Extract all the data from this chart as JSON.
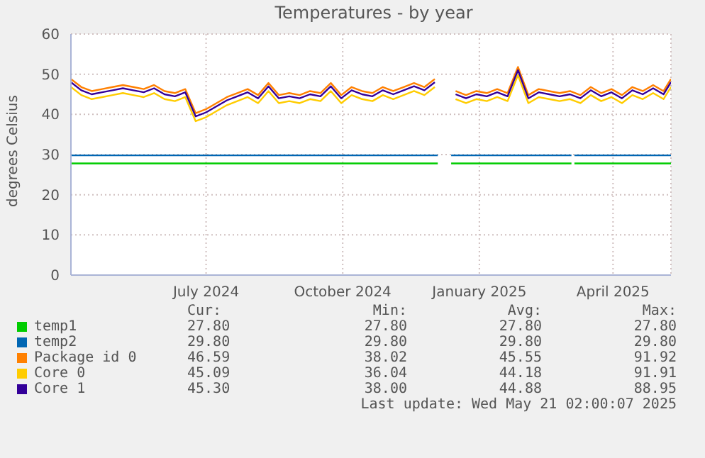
{
  "chart_data": {
    "type": "line",
    "title": "Temperatures - by year",
    "ylabel": "degrees Celsius",
    "xlim": [
      "2024-04-01",
      "2025-05-10"
    ],
    "xticks": [
      {
        "value": "2024-07-01",
        "label": "July 2024"
      },
      {
        "value": "2024-10-01",
        "label": "October 2024"
      },
      {
        "value": "2025-01-01",
        "label": "January 2025"
      },
      {
        "value": "2025-04-01",
        "label": "April 2025"
      }
    ],
    "ylim": [
      0,
      60
    ],
    "yticks": [
      0,
      10,
      20,
      30,
      40,
      50,
      60
    ],
    "grid": true,
    "legend": "bottom",
    "x": [
      "2024-04-01",
      "2024-04-08",
      "2024-04-15",
      "2024-04-22",
      "2024-04-29",
      "2024-05-06",
      "2024-05-13",
      "2024-05-20",
      "2024-05-27",
      "2024-06-03",
      "2024-06-10",
      "2024-06-17",
      "2024-06-24",
      "2024-07-01",
      "2024-07-08",
      "2024-07-15",
      "2024-07-22",
      "2024-07-29",
      "2024-08-05",
      "2024-08-12",
      "2024-08-19",
      "2024-08-26",
      "2024-09-02",
      "2024-09-09",
      "2024-09-16",
      "2024-09-23",
      "2024-09-30",
      "2024-10-07",
      "2024-10-14",
      "2024-10-21",
      "2024-10-28",
      "2024-11-04",
      "2024-11-11",
      "2024-11-18",
      "2024-11-25",
      "2024-12-02",
      "2024-12-09",
      "2024-12-16",
      "2024-12-23",
      "2024-12-30",
      "2025-01-06",
      "2025-01-13",
      "2025-01-20",
      "2025-01-27",
      "2025-02-03",
      "2025-02-10",
      "2025-02-17",
      "2025-02-24",
      "2025-03-03",
      "2025-03-10",
      "2025-03-17",
      "2025-03-24",
      "2025-03-31",
      "2025-04-07",
      "2025-04-14",
      "2025-04-21",
      "2025-04-28",
      "2025-05-05",
      "2025-05-10"
    ],
    "series": [
      {
        "name": "temp1",
        "color": "#00cc00",
        "x": [
          "2024-04-01",
          "2024-12-04",
          "2024-12-09",
          "2024-12-13",
          "2025-03-04",
          "2025-03-05",
          "2025-03-06",
          "2025-05-10"
        ],
        "values": [
          27.8,
          27.8,
          null,
          27.8,
          27.8,
          null,
          27.8,
          27.8
        ]
      },
      {
        "name": "temp2",
        "color": "#0066b3",
        "x": [
          "2024-04-01",
          "2024-12-04",
          "2024-12-09",
          "2024-12-13",
          "2025-03-04",
          "2025-03-05",
          "2025-03-06",
          "2025-05-10"
        ],
        "values": [
          29.8,
          29.8,
          null,
          29.8,
          29.8,
          null,
          29.8,
          29.8
        ]
      },
      {
        "name": "Package id 0",
        "color": "#ff8000",
        "values": [
          48.8,
          46.8,
          45.8,
          46.3,
          46.8,
          47.3,
          46.8,
          46.3,
          47.3,
          45.8,
          45.3,
          46.3,
          40.3,
          41.3,
          42.8,
          44.3,
          45.3,
          46.3,
          44.8,
          47.8,
          44.8,
          45.3,
          44.8,
          45.8,
          45.3,
          47.8,
          44.8,
          46.8,
          45.8,
          45.3,
          46.8,
          45.8,
          46.8,
          47.8,
          46.8,
          48.8,
          null,
          45.8,
          44.8,
          45.8,
          45.3,
          46.3,
          45.3,
          51.8,
          44.8,
          46.3,
          45.8,
          45.3,
          45.8,
          44.8,
          46.8,
          45.3,
          46.3,
          44.8,
          46.8,
          45.8,
          47.3,
          45.8,
          48.8
        ]
      },
      {
        "name": "Core 0",
        "color": "#ffcc00",
        "values": [
          46.8,
          44.8,
          43.8,
          44.3,
          44.8,
          45.3,
          44.8,
          44.3,
          45.3,
          43.8,
          43.3,
          44.3,
          38.3,
          39.3,
          40.8,
          42.3,
          43.3,
          44.3,
          42.8,
          45.8,
          42.8,
          43.3,
          42.8,
          43.8,
          43.3,
          45.8,
          42.8,
          44.8,
          43.8,
          43.3,
          44.8,
          43.8,
          44.8,
          45.8,
          44.8,
          46.8,
          null,
          43.8,
          42.8,
          43.8,
          43.3,
          44.3,
          43.3,
          49.8,
          42.8,
          44.3,
          43.8,
          43.3,
          43.8,
          42.8,
          44.8,
          43.3,
          44.3,
          42.8,
          44.8,
          43.8,
          45.3,
          43.8,
          46.8
        ]
      },
      {
        "name": "Core 1",
        "color": "#330099",
        "values": [
          48,
          46,
          45,
          45.5,
          46,
          46.5,
          46,
          45.5,
          46.5,
          45,
          44.5,
          45.5,
          39.5,
          40.5,
          42,
          43.5,
          44.5,
          45.5,
          44,
          47,
          44,
          44.5,
          44,
          45,
          44.5,
          47,
          44,
          46,
          45,
          44.5,
          46,
          45,
          46,
          47,
          46,
          48,
          null,
          45,
          44,
          45,
          44.5,
          45.5,
          44.5,
          51,
          44,
          45.5,
          45,
          44.5,
          45,
          44,
          46,
          44.5,
          45.5,
          44,
          46,
          45,
          46.5,
          45,
          48
        ]
      }
    ],
    "annotations": [
      "Cur:",
      "Min:",
      "Avg:",
      "Max:",
      "27.80",
      "27.80",
      "27.80",
      "27.80",
      "29.80",
      "29.80",
      "29.80",
      "29.80",
      "46.59",
      "38.02",
      "45.55",
      "91.92",
      "45.09",
      "36.04",
      "44.18",
      "91.91",
      "45.30",
      "38.00",
      "44.88",
      "88.95",
      "Last update: Wed May 21 02:00:07 2025"
    ]
  }
}
